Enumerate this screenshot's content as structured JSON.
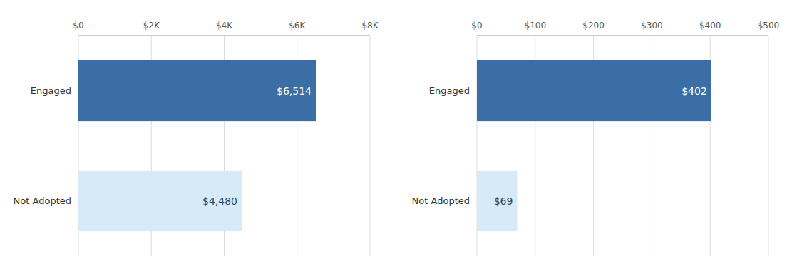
{
  "chart_data": [
    {
      "type": "bar",
      "orientation": "horizontal",
      "categories": [
        "Engaged",
        "Not Adopted"
      ],
      "values": [
        6514,
        4480
      ],
      "value_labels": [
        "$6,514",
        "$4,480"
      ],
      "colors": [
        "#3B6EA5",
        "#D6EAF8"
      ],
      "data_labels": true,
      "xlim": [
        0,
        8000
      ],
      "xticks": [
        {
          "value": 0,
          "label": "$0"
        },
        {
          "value": 2000,
          "label": "$2K"
        },
        {
          "value": 4000,
          "label": "$4K"
        },
        {
          "value": 6000,
          "label": "$6K"
        },
        {
          "value": 8000,
          "label": "$8K"
        }
      ],
      "grid": true
    },
    {
      "type": "bar",
      "orientation": "horizontal",
      "categories": [
        "Engaged",
        "Not Adopted"
      ],
      "values": [
        402,
        69
      ],
      "value_labels": [
        "$402",
        "$69"
      ],
      "colors": [
        "#3B6EA5",
        "#D6EAF8"
      ],
      "data_labels": true,
      "xlim": [
        0,
        500
      ],
      "xticks": [
        {
          "value": 0,
          "label": "$0"
        },
        {
          "value": 100,
          "label": "$100"
        },
        {
          "value": 200,
          "label": "$200"
        },
        {
          "value": 300,
          "label": "$300"
        },
        {
          "value": 400,
          "label": "$400"
        },
        {
          "value": 500,
          "label": "$500"
        }
      ],
      "grid": true
    }
  ]
}
